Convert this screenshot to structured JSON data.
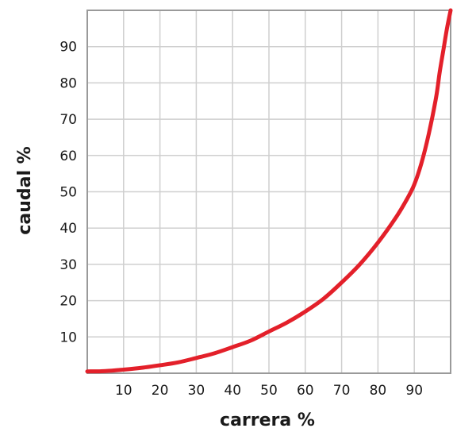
{
  "chart_data": {
    "type": "line",
    "title": "",
    "xlabel": "carrera %",
    "ylabel": "caudal %",
    "xlim": [
      0,
      100
    ],
    "ylim": [
      0,
      100
    ],
    "grid": true,
    "x_ticks": [
      "10",
      "20",
      "30",
      "40",
      "50",
      "60",
      "70",
      "80",
      "90"
    ],
    "y_ticks": [
      "10",
      "20",
      "30",
      "40",
      "50",
      "60",
      "70",
      "80",
      "90"
    ],
    "series": [
      {
        "color": "#e3202a",
        "x": [
          0,
          5,
          10,
          15,
          20,
          25,
          30,
          35,
          40,
          45,
          50,
          55,
          60,
          65,
          70,
          75,
          80,
          85,
          88,
          90,
          92,
          94,
          96,
          97,
          98,
          99,
          100
        ],
        "y": [
          0.5,
          0.6,
          1.0,
          1.5,
          2.2,
          3.0,
          4.2,
          5.5,
          7.2,
          9.0,
          11.5,
          14.0,
          17.0,
          20.5,
          25.0,
          30.0,
          36.0,
          43.0,
          48.0,
          52.0,
          58.0,
          66.0,
          76.0,
          83.0,
          89.0,
          95.0,
          100.0
        ]
      }
    ]
  }
}
